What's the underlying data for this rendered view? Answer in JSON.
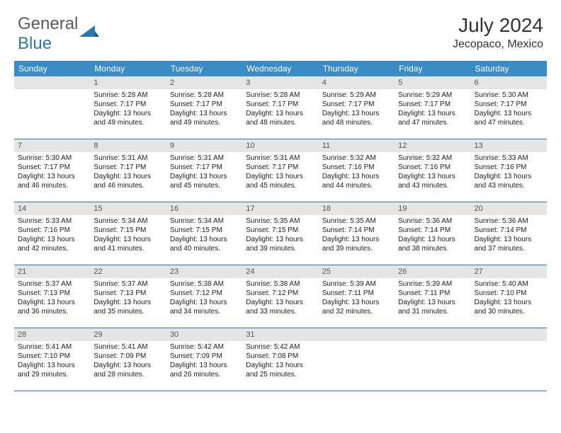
{
  "logo": {
    "general": "General",
    "blue": "Blue"
  },
  "title": "July 2024",
  "location": "Jecopaco, Mexico",
  "colors": {
    "header_bg": "#3b8bc4",
    "header_text": "#ffffff",
    "daynum_bg": "#e5e5e5",
    "daynum_text": "#555555",
    "border": "#2a7ab0",
    "logo_gray": "#5a5a5a",
    "logo_blue": "#2a7ab0"
  },
  "dayNames": [
    "Sunday",
    "Monday",
    "Tuesday",
    "Wednesday",
    "Thursday",
    "Friday",
    "Saturday"
  ],
  "weeks": [
    [
      null,
      {
        "n": "1",
        "sr": "Sunrise: 5:28 AM",
        "ss": "Sunset: 7:17 PM",
        "d1": "Daylight: 13 hours",
        "d2": "and 49 minutes."
      },
      {
        "n": "2",
        "sr": "Sunrise: 5:28 AM",
        "ss": "Sunset: 7:17 PM",
        "d1": "Daylight: 13 hours",
        "d2": "and 49 minutes."
      },
      {
        "n": "3",
        "sr": "Sunrise: 5:28 AM",
        "ss": "Sunset: 7:17 PM",
        "d1": "Daylight: 13 hours",
        "d2": "and 48 minutes."
      },
      {
        "n": "4",
        "sr": "Sunrise: 5:29 AM",
        "ss": "Sunset: 7:17 PM",
        "d1": "Daylight: 13 hours",
        "d2": "and 48 minutes."
      },
      {
        "n": "5",
        "sr": "Sunrise: 5:29 AM",
        "ss": "Sunset: 7:17 PM",
        "d1": "Daylight: 13 hours",
        "d2": "and 47 minutes."
      },
      {
        "n": "6",
        "sr": "Sunrise: 5:30 AM",
        "ss": "Sunset: 7:17 PM",
        "d1": "Daylight: 13 hours",
        "d2": "and 47 minutes."
      }
    ],
    [
      {
        "n": "7",
        "sr": "Sunrise: 5:30 AM",
        "ss": "Sunset: 7:17 PM",
        "d1": "Daylight: 13 hours",
        "d2": "and 46 minutes."
      },
      {
        "n": "8",
        "sr": "Sunrise: 5:31 AM",
        "ss": "Sunset: 7:17 PM",
        "d1": "Daylight: 13 hours",
        "d2": "and 46 minutes."
      },
      {
        "n": "9",
        "sr": "Sunrise: 5:31 AM",
        "ss": "Sunset: 7:17 PM",
        "d1": "Daylight: 13 hours",
        "d2": "and 45 minutes."
      },
      {
        "n": "10",
        "sr": "Sunrise: 5:31 AM",
        "ss": "Sunset: 7:17 PM",
        "d1": "Daylight: 13 hours",
        "d2": "and 45 minutes."
      },
      {
        "n": "11",
        "sr": "Sunrise: 5:32 AM",
        "ss": "Sunset: 7:16 PM",
        "d1": "Daylight: 13 hours",
        "d2": "and 44 minutes."
      },
      {
        "n": "12",
        "sr": "Sunrise: 5:32 AM",
        "ss": "Sunset: 7:16 PM",
        "d1": "Daylight: 13 hours",
        "d2": "and 43 minutes."
      },
      {
        "n": "13",
        "sr": "Sunrise: 5:33 AM",
        "ss": "Sunset: 7:16 PM",
        "d1": "Daylight: 13 hours",
        "d2": "and 43 minutes."
      }
    ],
    [
      {
        "n": "14",
        "sr": "Sunrise: 5:33 AM",
        "ss": "Sunset: 7:16 PM",
        "d1": "Daylight: 13 hours",
        "d2": "and 42 minutes."
      },
      {
        "n": "15",
        "sr": "Sunrise: 5:34 AM",
        "ss": "Sunset: 7:15 PM",
        "d1": "Daylight: 13 hours",
        "d2": "and 41 minutes."
      },
      {
        "n": "16",
        "sr": "Sunrise: 5:34 AM",
        "ss": "Sunset: 7:15 PM",
        "d1": "Daylight: 13 hours",
        "d2": "and 40 minutes."
      },
      {
        "n": "17",
        "sr": "Sunrise: 5:35 AM",
        "ss": "Sunset: 7:15 PM",
        "d1": "Daylight: 13 hours",
        "d2": "and 39 minutes."
      },
      {
        "n": "18",
        "sr": "Sunrise: 5:35 AM",
        "ss": "Sunset: 7:14 PM",
        "d1": "Daylight: 13 hours",
        "d2": "and 39 minutes."
      },
      {
        "n": "19",
        "sr": "Sunrise: 5:36 AM",
        "ss": "Sunset: 7:14 PM",
        "d1": "Daylight: 13 hours",
        "d2": "and 38 minutes."
      },
      {
        "n": "20",
        "sr": "Sunrise: 5:36 AM",
        "ss": "Sunset: 7:14 PM",
        "d1": "Daylight: 13 hours",
        "d2": "and 37 minutes."
      }
    ],
    [
      {
        "n": "21",
        "sr": "Sunrise: 5:37 AM",
        "ss": "Sunset: 7:13 PM",
        "d1": "Daylight: 13 hours",
        "d2": "and 36 minutes."
      },
      {
        "n": "22",
        "sr": "Sunrise: 5:37 AM",
        "ss": "Sunset: 7:13 PM",
        "d1": "Daylight: 13 hours",
        "d2": "and 35 minutes."
      },
      {
        "n": "23",
        "sr": "Sunrise: 5:38 AM",
        "ss": "Sunset: 7:12 PM",
        "d1": "Daylight: 13 hours",
        "d2": "and 34 minutes."
      },
      {
        "n": "24",
        "sr": "Sunrise: 5:38 AM",
        "ss": "Sunset: 7:12 PM",
        "d1": "Daylight: 13 hours",
        "d2": "and 33 minutes."
      },
      {
        "n": "25",
        "sr": "Sunrise: 5:39 AM",
        "ss": "Sunset: 7:11 PM",
        "d1": "Daylight: 13 hours",
        "d2": "and 32 minutes."
      },
      {
        "n": "26",
        "sr": "Sunrise: 5:39 AM",
        "ss": "Sunset: 7:11 PM",
        "d1": "Daylight: 13 hours",
        "d2": "and 31 minutes."
      },
      {
        "n": "27",
        "sr": "Sunrise: 5:40 AM",
        "ss": "Sunset: 7:10 PM",
        "d1": "Daylight: 13 hours",
        "d2": "and 30 minutes."
      }
    ],
    [
      {
        "n": "28",
        "sr": "Sunrise: 5:41 AM",
        "ss": "Sunset: 7:10 PM",
        "d1": "Daylight: 13 hours",
        "d2": "and 29 minutes."
      },
      {
        "n": "29",
        "sr": "Sunrise: 5:41 AM",
        "ss": "Sunset: 7:09 PM",
        "d1": "Daylight: 13 hours",
        "d2": "and 28 minutes."
      },
      {
        "n": "30",
        "sr": "Sunrise: 5:42 AM",
        "ss": "Sunset: 7:09 PM",
        "d1": "Daylight: 13 hours",
        "d2": "and 26 minutes."
      },
      {
        "n": "31",
        "sr": "Sunrise: 5:42 AM",
        "ss": "Sunset: 7:08 PM",
        "d1": "Daylight: 13 hours",
        "d2": "and 25 minutes."
      },
      null,
      null,
      null
    ]
  ]
}
